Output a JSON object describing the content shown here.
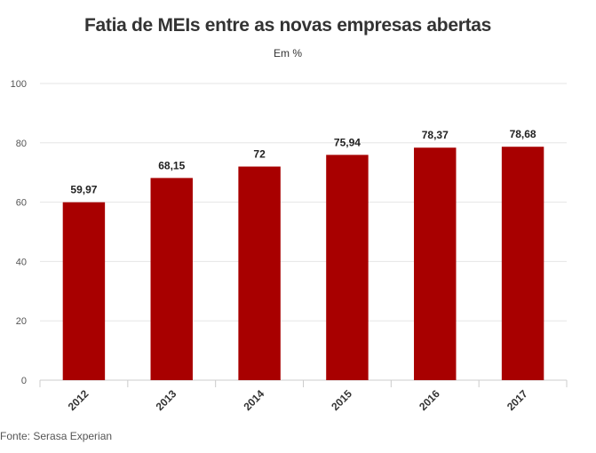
{
  "chart_data": {
    "type": "bar",
    "title": "Fatia de MEIs entre as novas empresas abertas",
    "subtitle": "Em %",
    "categories": [
      "2012",
      "2013",
      "2014",
      "2015",
      "2016",
      "2017"
    ],
    "values": [
      59.97,
      68.15,
      72,
      75.94,
      78.37,
      78.68
    ],
    "data_labels": [
      "59,97",
      "68,15",
      "72",
      "75,94",
      "78,37",
      "78,68"
    ],
    "ylim": [
      0,
      100
    ],
    "yticks": [
      0,
      20,
      40,
      60,
      80,
      100
    ],
    "grid": true,
    "legend": "none",
    "bar_color": "#a80000",
    "source": "Fonte: Serasa Experian"
  }
}
